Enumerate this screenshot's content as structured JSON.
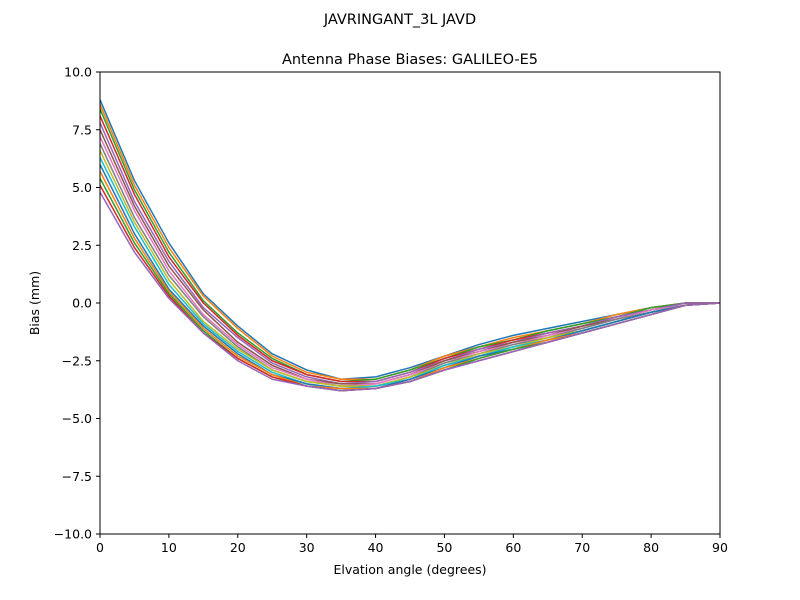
{
  "chart_data": {
    "type": "line",
    "suptitle": "JAVRINGANT_3L   JAVD",
    "title": "Antenna Phase Biases: GALILEO-E5",
    "xlabel": "Elvation angle (degrees)",
    "ylabel": "Bias (mm)",
    "xlim": [
      0,
      90
    ],
    "ylim": [
      -10,
      10
    ],
    "xticks": [
      0,
      10,
      20,
      30,
      40,
      50,
      60,
      70,
      80,
      90
    ],
    "yticks": [
      -10.0,
      -7.5,
      -5.0,
      -2.5,
      0.0,
      2.5,
      5.0,
      7.5,
      10.0
    ],
    "ytick_labels": [
      "−10.0",
      "−7.5",
      "−5.0",
      "−2.5",
      "0.0",
      "2.5",
      "5.0",
      "7.5",
      "10.0"
    ],
    "x": [
      0,
      5,
      10,
      15,
      20,
      25,
      30,
      35,
      40,
      45,
      50,
      55,
      60,
      65,
      70,
      75,
      80,
      85,
      90
    ],
    "legend": "none",
    "grid": false,
    "series_colors": [
      "#1f77b4",
      "#ff7f0e",
      "#2ca02c",
      "#d62728",
      "#9467bd",
      "#8c564b",
      "#e377c2",
      "#7f7f7f",
      "#bcbd22",
      "#17becf"
    ],
    "series": [
      {
        "values": [
          8.8,
          5.3,
          2.6,
          0.4,
          -1.0,
          -2.2,
          -2.9,
          -3.3,
          -3.2,
          -2.8,
          -2.3,
          -1.8,
          -1.4,
          -1.1,
          -0.8,
          -0.5,
          -0.2,
          0.0,
          0.0
        ]
      },
      {
        "values": [
          8.6,
          5.1,
          2.4,
          0.3,
          -1.1,
          -2.3,
          -3.0,
          -3.3,
          -3.3,
          -2.9,
          -2.3,
          -1.9,
          -1.5,
          -1.2,
          -0.9,
          -0.5,
          -0.2,
          0.0,
          0.0
        ]
      },
      {
        "values": [
          8.4,
          4.9,
          2.2,
          0.1,
          -1.3,
          -2.4,
          -3.1,
          -3.4,
          -3.3,
          -2.9,
          -2.4,
          -1.9,
          -1.6,
          -1.2,
          -0.9,
          -0.6,
          -0.2,
          0.0,
          0.0
        ]
      },
      {
        "values": [
          8.1,
          4.7,
          2.0,
          0.0,
          -1.4,
          -2.5,
          -3.1,
          -3.4,
          -3.4,
          -3.0,
          -2.4,
          -2.0,
          -1.6,
          -1.3,
          -1.0,
          -0.6,
          -0.3,
          0.0,
          0.0
        ]
      },
      {
        "values": [
          7.8,
          4.4,
          1.8,
          -0.2,
          -1.5,
          -2.6,
          -3.2,
          -3.5,
          -3.4,
          -3.0,
          -2.5,
          -2.0,
          -1.7,
          -1.3,
          -1.0,
          -0.6,
          -0.3,
          0.0,
          0.0
        ]
      },
      {
        "values": [
          7.5,
          4.2,
          1.6,
          -0.3,
          -1.7,
          -2.7,
          -3.3,
          -3.5,
          -3.5,
          -3.1,
          -2.5,
          -2.1,
          -1.7,
          -1.4,
          -1.0,
          -0.7,
          -0.3,
          -0.1,
          0.0
        ]
      },
      {
        "values": [
          7.2,
          4.0,
          1.4,
          -0.5,
          -1.8,
          -2.8,
          -3.3,
          -3.6,
          -3.5,
          -3.1,
          -2.6,
          -2.1,
          -1.8,
          -1.4,
          -1.1,
          -0.7,
          -0.3,
          -0.1,
          0.0
        ]
      },
      {
        "values": [
          6.9,
          3.7,
          1.2,
          -0.6,
          -1.9,
          -2.9,
          -3.4,
          -3.6,
          -3.6,
          -3.2,
          -2.6,
          -2.2,
          -1.8,
          -1.5,
          -1.1,
          -0.7,
          -0.4,
          -0.1,
          0.0
        ]
      },
      {
        "values": [
          6.6,
          3.5,
          1.0,
          -0.8,
          -2.0,
          -2.9,
          -3.4,
          -3.6,
          -3.6,
          -3.2,
          -2.7,
          -2.2,
          -1.9,
          -1.5,
          -1.2,
          -0.8,
          -0.4,
          -0.1,
          0.0
        ]
      },
      {
        "values": [
          6.3,
          3.3,
          0.8,
          -0.9,
          -2.1,
          -3.0,
          -3.5,
          -3.7,
          -3.6,
          -3.3,
          -2.7,
          -2.3,
          -1.9,
          -1.6,
          -1.2,
          -0.8,
          -0.4,
          -0.1,
          0.0
        ]
      },
      {
        "values": [
          6.0,
          3.0,
          0.6,
          -1.0,
          -2.2,
          -3.1,
          -3.5,
          -3.7,
          -3.7,
          -3.3,
          -2.8,
          -2.3,
          -2.0,
          -1.6,
          -1.2,
          -0.8,
          -0.4,
          -0.1,
          0.0
        ]
      },
      {
        "values": [
          5.7,
          2.8,
          0.5,
          -1.1,
          -2.3,
          -3.1,
          -3.6,
          -3.7,
          -3.7,
          -3.4,
          -2.8,
          -2.4,
          -2.0,
          -1.6,
          -1.3,
          -0.9,
          -0.5,
          -0.1,
          0.0
        ]
      },
      {
        "values": [
          5.4,
          2.6,
          0.4,
          -1.2,
          -2.4,
          -3.2,
          -3.6,
          -3.8,
          -3.7,
          -3.4,
          -2.9,
          -2.4,
          -2.0,
          -1.7,
          -1.3,
          -0.9,
          -0.5,
          -0.1,
          0.0
        ]
      },
      {
        "values": [
          5.1,
          2.4,
          0.3,
          -1.3,
          -2.4,
          -3.2,
          -3.6,
          -3.8,
          -3.7,
          -3.4,
          -2.9,
          -2.5,
          -2.1,
          -1.7,
          -1.3,
          -0.9,
          -0.5,
          -0.1,
          0.0
        ]
      },
      {
        "values": [
          4.8,
          2.2,
          0.2,
          -1.3,
          -2.5,
          -3.3,
          -3.6,
          -3.8,
          -3.7,
          -3.4,
          -2.9,
          -2.5,
          -2.1,
          -1.7,
          -1.3,
          -0.9,
          -0.5,
          -0.1,
          0.0
        ]
      }
    ]
  }
}
